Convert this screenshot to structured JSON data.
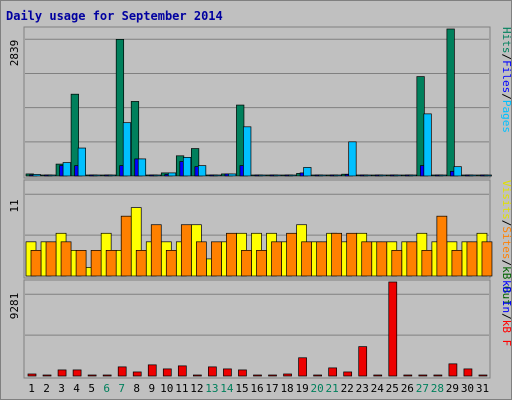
{
  "chart_data": {
    "type": "bar",
    "title": "Daily usage for September 2014",
    "categories": [
      "1",
      "2",
      "3",
      "4",
      "5",
      "6",
      "7",
      "8",
      "9",
      "10",
      "11",
      "12",
      "13",
      "14",
      "15",
      "16",
      "17",
      "18",
      "19",
      "20",
      "21",
      "22",
      "23",
      "24",
      "25",
      "26",
      "27",
      "28",
      "29",
      "30",
      "31"
    ],
    "weekend_days": [
      "6",
      "7",
      "13",
      "14",
      "20",
      "21",
      "27",
      "28"
    ],
    "panels": [
      {
        "id": "top",
        "ymax": 2839,
        "ymax_label": "2839",
        "right_labels": [
          {
            "text": "Hits",
            "color": "#00805c"
          },
          {
            "text": "/",
            "color": "#000000"
          },
          {
            "text": "Files",
            "color": "#0000ff"
          },
          {
            "text": "/",
            "color": "#000000"
          },
          {
            "text": "Pages",
            "color": "#00c0ff"
          }
        ],
        "series": [
          {
            "key": "hits",
            "color": "#00805c",
            "values": [
              40,
              10,
              230,
              1580,
              10,
              10,
              2639,
              1440,
              10,
              60,
              390,
              530,
              10,
              40,
              1370,
              10,
              10,
              10,
              50,
              10,
              10,
              35,
              10,
              10,
              10,
              10,
              1920,
              10,
              2839,
              10,
              10
            ]
          },
          {
            "key": "files",
            "color": "#0000ff",
            "values": [
              20,
              10,
              200,
              200,
              10,
              10,
              200,
              330,
              10,
              30,
              280,
              180,
              10,
              40,
              200,
              10,
              10,
              10,
              60,
              10,
              10,
              30,
              10,
              10,
              10,
              10,
              200,
              10,
              90,
              10,
              10
            ]
          },
          {
            "key": "pages",
            "color": "#00c0ff",
            "values": [
              30,
              10,
              260,
              540,
              10,
              10,
              1030,
              330,
              10,
              60,
              360,
              200,
              10,
              40,
              950,
              10,
              10,
              10,
              165,
              10,
              10,
              660,
              10,
              10,
              10,
              10,
              1200,
              10,
              180,
              10,
              10
            ]
          }
        ]
      },
      {
        "id": "middle",
        "ymax": 11,
        "ymax_label": "11",
        "right_labels": [
          {
            "text": "Visits",
            "color": "#e0e000"
          },
          {
            "text": "/",
            "color": "#000000"
          },
          {
            "text": "Sites",
            "color": "#ff8000"
          },
          {
            "text": "/",
            "color": "#000000"
          },
          {
            "text": "kB Out",
            "color": "#006400"
          }
        ],
        "series": [
          {
            "key": "visits",
            "color": "#ffff00",
            "values": [
              4,
              4,
              5,
              3,
              1,
              5,
              3,
              8,
              4,
              4,
              4,
              6,
              2,
              4,
              5,
              5,
              5,
              4,
              6,
              4,
              5,
              4,
              5,
              4,
              4,
              4,
              5,
              4,
              4,
              4,
              5
            ]
          },
          {
            "key": "sites",
            "color": "#ff8000",
            "values": [
              3,
              4,
              4,
              3,
              3,
              3,
              7,
              3,
              6,
              3,
              6,
              4,
              4,
              5,
              3,
              3,
              4,
              5,
              4,
              4,
              5,
              5,
              4,
              4,
              3,
              4,
              3,
              7,
              3,
              4,
              4
            ]
          }
        ]
      },
      {
        "id": "bottom",
        "ymax": 9281,
        "ymax_label": "9281",
        "right_labels": [
          {
            "text": "kB In",
            "color": "#0000ff"
          },
          {
            "text": "/",
            "color": "#000000"
          },
          {
            "text": "kB F",
            "color": "#ff0000"
          }
        ],
        "series": [
          {
            "key": "kbf",
            "color": "#ee0000",
            "values": [
              200,
              100,
              600,
              600,
              100,
              100,
              900,
              400,
              1100,
              700,
              1000,
              100,
              900,
              700,
              600,
              100,
              100,
              200,
              1800,
              100,
              800,
              400,
              2900,
              100,
              9281,
              100,
              100,
              100,
              1200,
              700,
              100
            ]
          }
        ]
      }
    ]
  }
}
